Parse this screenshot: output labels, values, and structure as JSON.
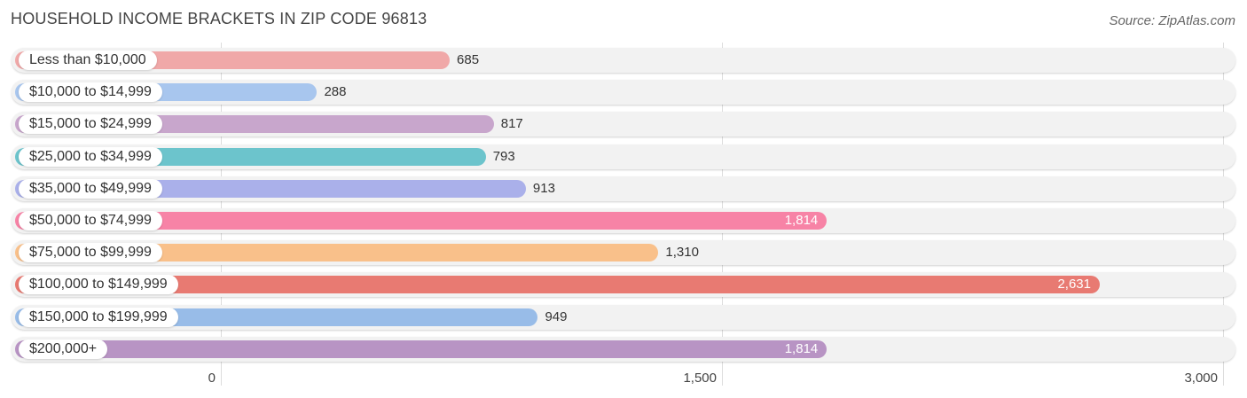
{
  "header": {
    "title": "HOUSEHOLD INCOME BRACKETS IN ZIP CODE 96813",
    "source": "Source: ZipAtlas.com"
  },
  "chart_data": {
    "type": "bar",
    "orientation": "horizontal",
    "title": "HOUSEHOLD INCOME BRACKETS IN ZIP CODE 96813",
    "categories": [
      "Less than $10,000",
      "$10,000 to $14,999",
      "$15,000 to $24,999",
      "$25,000 to $34,999",
      "$35,000 to $49,999",
      "$50,000 to $74,999",
      "$75,000 to $99,999",
      "$100,000 to $149,999",
      "$150,000 to $199,999",
      "$200,000+"
    ],
    "values": [
      685,
      288,
      817,
      793,
      913,
      1814,
      1310,
      2631,
      949,
      1814
    ],
    "value_labels": [
      "685",
      "288",
      "817",
      "793",
      "913",
      "1,814",
      "1,310",
      "2,631",
      "949",
      "1,814"
    ],
    "colors": [
      "#f0a8a8",
      "#a8c6ee",
      "#c8a6cc",
      "#6cc4cc",
      "#aab0ea",
      "#f783a6",
      "#f9c08a",
      "#e87a72",
      "#98bce8",
      "#b894c4"
    ],
    "xlim": [
      0,
      3000
    ],
    "ticks": [
      0,
      1500,
      3000
    ],
    "tick_labels": [
      "0",
      "1,500",
      "3,000"
    ],
    "grid": true
  }
}
